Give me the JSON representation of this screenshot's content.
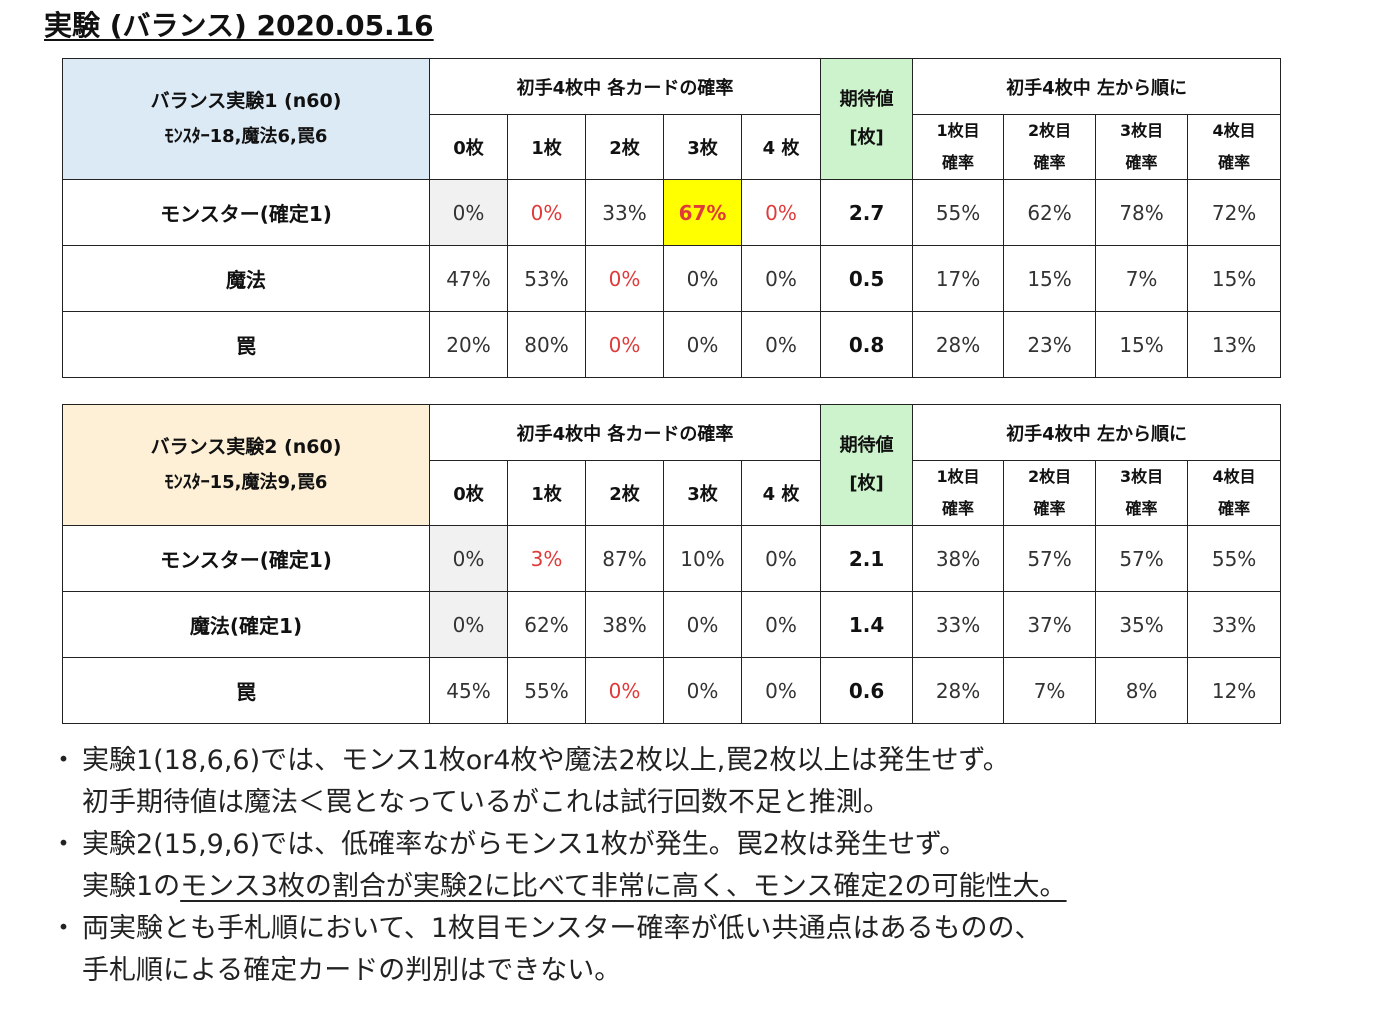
{
  "title": "実験 (バランス) 2020.05.16",
  "headers": {
    "group1": "初手4枚中 各カードの確率",
    "expected_line1": "期待値",
    "expected_line2": "[枚]",
    "group2": "初手4枚中 左から順に",
    "counts": [
      "0枚",
      "1枚",
      "2枚",
      "3枚",
      "4 枚"
    ],
    "positions": [
      {
        "line1": "1枚目",
        "line2": "確率"
      },
      {
        "line1": "2枚目",
        "line2": "確率"
      },
      {
        "line1": "3枚目",
        "line2": "確率"
      },
      {
        "line1": "4枚目",
        "line2": "確率"
      }
    ]
  },
  "tables": [
    {
      "name_line1": "バランス実験1 (n60)",
      "name_line2": "ﾓﾝｽﾀｰ18,魔法6,罠6",
      "header_color": "#dceaf6",
      "rows": [
        {
          "label": "モンスター(確定1)",
          "counts": [
            "0%",
            "0%",
            "33%",
            "67%",
            "0%"
          ],
          "expected": "2.7",
          "positions": [
            "55%",
            "62%",
            "78%",
            "72%"
          ]
        },
        {
          "label": "魔法",
          "counts": [
            "47%",
            "53%",
            "0%",
            "0%",
            "0%"
          ],
          "expected": "0.5",
          "positions": [
            "17%",
            "15%",
            "7%",
            "15%"
          ]
        },
        {
          "label": "罠",
          "counts": [
            "20%",
            "80%",
            "0%",
            "0%",
            "0%"
          ],
          "expected": "0.8",
          "positions": [
            "28%",
            "23%",
            "15%",
            "13%"
          ]
        }
      ]
    },
    {
      "name_line1": "バランス実験2 (n60)",
      "name_line2": "ﾓﾝｽﾀｰ15,魔法9,罠6",
      "header_color": "#fdf0d6",
      "rows": [
        {
          "label": "モンスター(確定1)",
          "counts": [
            "0%",
            "3%",
            "87%",
            "10%",
            "0%"
          ],
          "expected": "2.1",
          "positions": [
            "38%",
            "57%",
            "57%",
            "55%"
          ]
        },
        {
          "label": "魔法(確定1)",
          "counts": [
            "0%",
            "62%",
            "38%",
            "0%",
            "0%"
          ],
          "expected": "1.4",
          "positions": [
            "33%",
            "37%",
            "35%",
            "33%"
          ]
        },
        {
          "label": "罠",
          "counts": [
            "45%",
            "55%",
            "0%",
            "0%",
            "0%"
          ],
          "expected": "0.6",
          "positions": [
            "28%",
            "7%",
            "8%",
            "12%"
          ]
        }
      ]
    }
  ],
  "colors": {
    "red_text": "#e03a3a",
    "highlight": "#ffff00",
    "expected_header": "#ccf3cc",
    "gray_cell": "#f1f1f1"
  },
  "notes": [
    {
      "line1": "実験1(18,6,6)では、モンス1枚or4枚や魔法2枚以上,罠2枚以上は発生せず。",
      "line2": "初手期待値は魔法＜罠となっているがこれは試行回数不足と推測。"
    },
    {
      "line1": "実験2(15,9,6)では、低確率ながらモンス1枚が発生。罠2枚は発生せず。",
      "line2_prefix": "実験1の",
      "line2_underlined": "モンス3枚の割合が実験2に比べて非常に高く、モンス確定2の可能性大。"
    },
    {
      "line1": "両実験とも手札順において、1枚目モンスター確率が低い共通点はあるものの、",
      "line2": "手札順による確定カードの判別はできない。"
    }
  ]
}
